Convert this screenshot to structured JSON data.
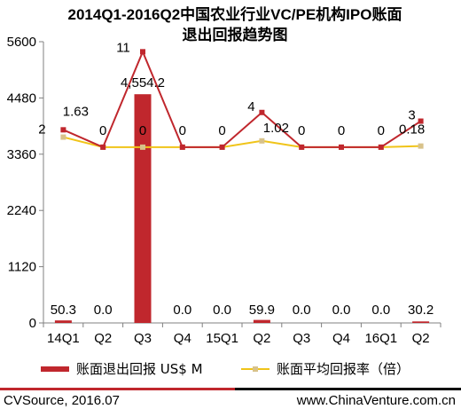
{
  "chart_data": {
    "type": "bar",
    "title": "2014Q1-2016Q2中国农业行业VC/PE机构IPO账面退出回报趋势图",
    "title_lines": [
      "2014Q1-2016Q2中国农业行业VC/PE机构IPO账面",
      "退出回报趋势图"
    ],
    "categories": [
      "14Q1",
      "Q2",
      "Q3",
      "Q4",
      "15Q1",
      "Q2",
      "Q3",
      "Q4",
      "16Q1",
      "Q2"
    ],
    "y_ticks": [
      "0",
      "1120",
      "2240",
      "3360",
      "4480",
      "5600"
    ],
    "ylim": [
      0,
      5600
    ],
    "grid": false,
    "legend_position": "bottom",
    "series": [
      {
        "name": "账面退出回报 US$ M",
        "kind": "bar",
        "color": "#c0272d",
        "values": [
          50.3,
          0.0,
          4554.2,
          0.0,
          0.0,
          59.9,
          0.0,
          0.0,
          0.0,
          30.2
        ],
        "labels": [
          "50.3",
          "0.0",
          "4,554.2",
          "0.0",
          "0.0",
          "59.9",
          "0.0",
          "0.0",
          "0.0",
          "30.2"
        ]
      },
      {
        "name": "账面平均回报率（倍）",
        "kind": "line",
        "color": "#f0c419",
        "values": [
          1.63,
          0,
          0,
          0,
          0,
          1.02,
          0,
          0,
          0,
          0.18
        ],
        "labels": [
          "1.63",
          "0",
          "0",
          "0",
          "0",
          "1.02",
          "0",
          "0",
          "0",
          "0.18"
        ]
      },
      {
        "kind": "line",
        "color": "#c0272d",
        "values": [
          2,
          0,
          11,
          0,
          0,
          4,
          0,
          0,
          0,
          3
        ],
        "labels": [
          "2",
          "",
          "11",
          "",
          "",
          "4",
          "",
          "",
          "",
          "3"
        ]
      }
    ]
  },
  "footer": {
    "source": "CVSource, 2016.07",
    "website": "www.ChinaVenture.com.cn"
  }
}
